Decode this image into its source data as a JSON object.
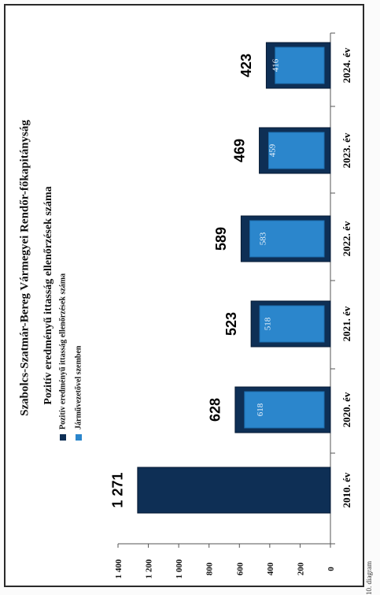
{
  "chart_data": {
    "type": "bar",
    "title": "Szabolcs-Szatmár-Bereg Vármegyei Rendőr-főkapitányság",
    "subtitle": "Pozitív eredményű ittasság ellenőrzések száma",
    "categories": [
      "2010. év",
      "2020. év",
      "2021. év",
      "2022. év",
      "2023. év",
      "2024. év"
    ],
    "series": [
      {
        "name": "Pozitív eredményű ittasság ellenőrzések száma",
        "values": [
          1271,
          628,
          523,
          589,
          469,
          423
        ],
        "value_labels": [
          "1 271",
          "628",
          "523",
          "589",
          "469",
          "423"
        ],
        "color": "#0e2f55"
      },
      {
        "name": "Járművezetővel szemben",
        "values": [
          null,
          618,
          518,
          583,
          459,
          416
        ],
        "value_labels": [
          "",
          "618",
          "518",
          "583",
          "459",
          "416"
        ],
        "color": "#2b86cc"
      }
    ],
    "yticks": [
      "0",
      "200",
      "400",
      "600",
      "800",
      "1 000",
      "1 200",
      "1 400"
    ],
    "ylim": [
      0,
      1400
    ],
    "orientation": "rotated-90-ccw",
    "legend_position": "top-left"
  },
  "side_note": "10. diagram"
}
